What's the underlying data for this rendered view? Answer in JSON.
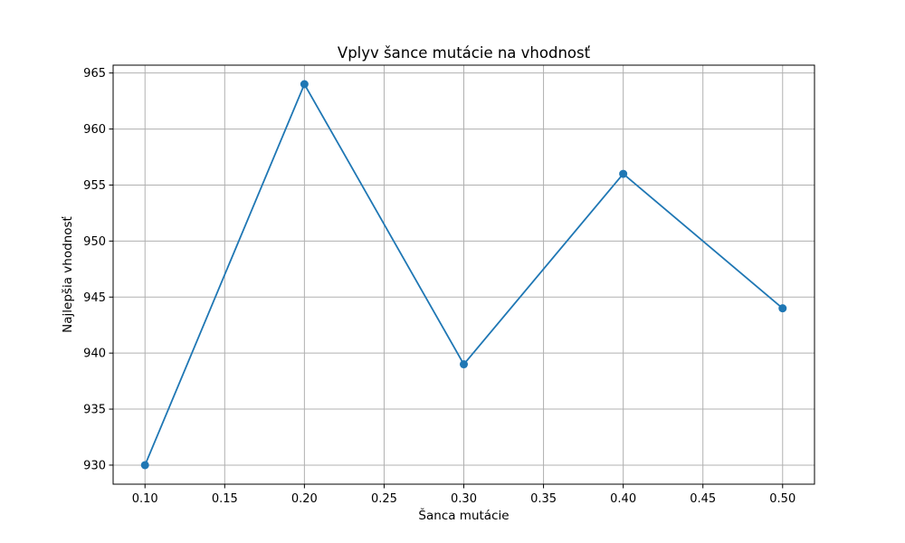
{
  "chart_data": {
    "type": "line",
    "title": "Vplyv šance mutácie na vhodnosť",
    "xlabel": "Šanca mutácie",
    "ylabel": "Najlepšia vhodnosť",
    "x": [
      0.1,
      0.2,
      0.3,
      0.4,
      0.5
    ],
    "y": [
      930,
      964,
      939,
      956,
      944
    ],
    "xlim": [
      0.08,
      0.52
    ],
    "ylim": [
      928.3,
      965.7
    ],
    "xticks": [
      "0.10",
      "0.15",
      "0.20",
      "0.25",
      "0.30",
      "0.35",
      "0.40",
      "0.45",
      "0.50"
    ],
    "yticks": [
      "930",
      "935",
      "940",
      "945",
      "950",
      "955",
      "960",
      "965"
    ],
    "grid": true,
    "marker": "circle",
    "color": "#1f77b4"
  }
}
